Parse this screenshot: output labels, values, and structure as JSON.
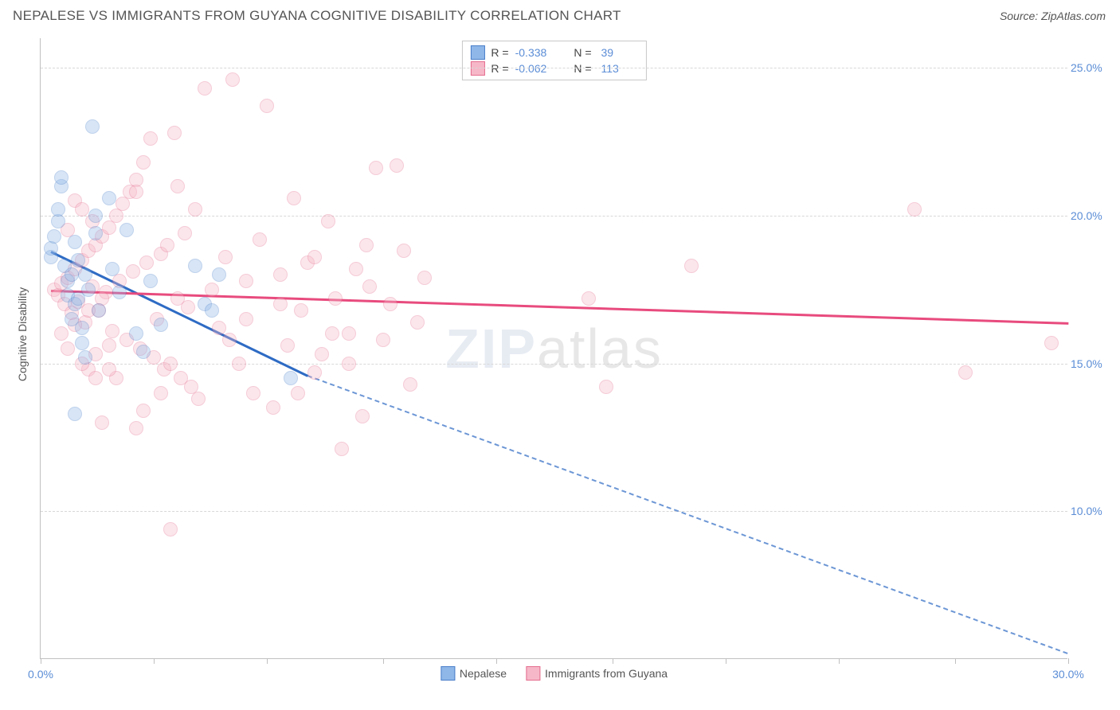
{
  "title": "NEPALESE VS IMMIGRANTS FROM GUYANA COGNITIVE DISABILITY CORRELATION CHART",
  "source": "Source: ZipAtlas.com",
  "watermark": {
    "bold": "ZIP",
    "thin": "atlas"
  },
  "chart": {
    "type": "scatter",
    "background_color": "#ffffff",
    "grid_color": "#d8d8d8",
    "axis_color": "#c0c0c0",
    "tick_label_color": "#5b8dd6",
    "label_color": "#555555",
    "y_axis_label": "Cognitive Disability",
    "label_fontsize": 14,
    "tick_fontsize": 14,
    "xlim": [
      0,
      30
    ],
    "ylim": [
      5,
      26
    ],
    "xtick_positions": [
      0,
      3.3,
      6.6,
      10,
      13.3,
      16.7,
      20,
      23.3,
      26.7,
      30
    ],
    "xtick_labels": [
      "0.0%",
      "",
      "",
      "",
      "",
      "",
      "",
      "",
      "",
      "30.0%"
    ],
    "ytick_positions": [
      10,
      15,
      20,
      25
    ],
    "ytick_labels": [
      "10.0%",
      "15.0%",
      "20.0%",
      "25.0%"
    ],
    "marker_radius": 9,
    "marker_opacity": 0.35,
    "series": [
      {
        "name": "Nepalese",
        "fill_color": "#8fb7e8",
        "stroke_color": "#4a7fc9",
        "line_color": "#2e6bc4",
        "R": "-0.338",
        "N": "39",
        "regression": {
          "x1": 0.3,
          "y1": 18.8,
          "x2": 7.8,
          "y2": 14.6,
          "extend_x2": 30,
          "extend_y2": 5.2
        },
        "points": [
          [
            0.3,
            18.6
          ],
          [
            0.3,
            18.9
          ],
          [
            0.4,
            19.3
          ],
          [
            0.5,
            19.8
          ],
          [
            0.5,
            20.2
          ],
          [
            0.6,
            21.0
          ],
          [
            0.6,
            21.3
          ],
          [
            0.7,
            18.3
          ],
          [
            0.8,
            17.8
          ],
          [
            0.8,
            17.3
          ],
          [
            0.9,
            18.0
          ],
          [
            0.9,
            16.5
          ],
          [
            1.0,
            17.0
          ],
          [
            1.0,
            19.1
          ],
          [
            1.1,
            18.5
          ],
          [
            1.1,
            17.2
          ],
          [
            1.2,
            16.2
          ],
          [
            1.2,
            15.7
          ],
          [
            1.3,
            15.2
          ],
          [
            1.3,
            18.0
          ],
          [
            1.4,
            17.5
          ],
          [
            1.0,
            13.3
          ],
          [
            1.5,
            23.0
          ],
          [
            1.6,
            20.0
          ],
          [
            1.6,
            19.4
          ],
          [
            1.7,
            16.8
          ],
          [
            2.0,
            20.6
          ],
          [
            2.1,
            18.2
          ],
          [
            2.3,
            17.4
          ],
          [
            2.5,
            19.5
          ],
          [
            2.8,
            16.0
          ],
          [
            3.0,
            15.4
          ],
          [
            3.2,
            17.8
          ],
          [
            3.5,
            16.3
          ],
          [
            4.5,
            18.3
          ],
          [
            4.8,
            17.0
          ],
          [
            5.0,
            16.8
          ],
          [
            5.2,
            18.0
          ],
          [
            7.3,
            14.5
          ]
        ]
      },
      {
        "name": "Immigrants from Guyana",
        "fill_color": "#f6b8c8",
        "stroke_color": "#e56d8f",
        "line_color": "#e84b7e",
        "R": "-0.062",
        "N": "113",
        "regression": {
          "x1": 0.3,
          "y1": 17.5,
          "x2": 30,
          "y2": 16.4
        },
        "points": [
          [
            0.4,
            17.5
          ],
          [
            0.5,
            17.3
          ],
          [
            0.6,
            17.7
          ],
          [
            0.7,
            17.0
          ],
          [
            0.8,
            17.9
          ],
          [
            0.9,
            16.7
          ],
          [
            1.0,
            18.2
          ],
          [
            1.1,
            17.1
          ],
          [
            1.2,
            18.5
          ],
          [
            1.3,
            16.4
          ],
          [
            1.4,
            18.8
          ],
          [
            1.5,
            17.6
          ],
          [
            1.6,
            19.0
          ],
          [
            1.7,
            16.8
          ],
          [
            1.8,
            19.3
          ],
          [
            1.9,
            17.4
          ],
          [
            2.0,
            19.6
          ],
          [
            2.1,
            16.1
          ],
          [
            2.2,
            20.0
          ],
          [
            2.3,
            17.8
          ],
          [
            2.4,
            20.4
          ],
          [
            2.5,
            15.8
          ],
          [
            2.6,
            20.8
          ],
          [
            2.7,
            18.1
          ],
          [
            2.8,
            21.2
          ],
          [
            2.9,
            15.5
          ],
          [
            3.0,
            21.8
          ],
          [
            3.1,
            18.4
          ],
          [
            3.2,
            22.6
          ],
          [
            3.3,
            15.2
          ],
          [
            3.4,
            16.5
          ],
          [
            3.5,
            18.7
          ],
          [
            3.6,
            14.8
          ],
          [
            3.7,
            19.0
          ],
          [
            3.8,
            15.0
          ],
          [
            3.9,
            22.8
          ],
          [
            4.0,
            17.2
          ],
          [
            4.1,
            14.5
          ],
          [
            4.2,
            19.4
          ],
          [
            4.3,
            16.9
          ],
          [
            4.4,
            14.2
          ],
          [
            4.5,
            20.2
          ],
          [
            4.6,
            13.8
          ],
          [
            4.8,
            24.3
          ],
          [
            5.0,
            17.5
          ],
          [
            5.2,
            16.2
          ],
          [
            5.4,
            18.6
          ],
          [
            5.6,
            24.6
          ],
          [
            5.8,
            15.0
          ],
          [
            6.0,
            17.8
          ],
          [
            6.2,
            14.0
          ],
          [
            6.4,
            19.2
          ],
          [
            6.6,
            23.7
          ],
          [
            6.8,
            13.5
          ],
          [
            7.0,
            18.0
          ],
          [
            7.2,
            15.6
          ],
          [
            7.4,
            20.6
          ],
          [
            7.6,
            16.8
          ],
          [
            7.8,
            18.4
          ],
          [
            8.0,
            14.7
          ],
          [
            8.2,
            15.3
          ],
          [
            8.4,
            19.8
          ],
          [
            8.6,
            17.2
          ],
          [
            8.8,
            12.1
          ],
          [
            9.0,
            16.0
          ],
          [
            9.2,
            18.2
          ],
          [
            9.4,
            13.2
          ],
          [
            9.6,
            17.6
          ],
          [
            9.8,
            21.6
          ],
          [
            10.0,
            15.8
          ],
          [
            10.2,
            17.0
          ],
          [
            10.4,
            21.7
          ],
          [
            10.6,
            18.8
          ],
          [
            10.8,
            14.3
          ],
          [
            11.0,
            16.4
          ],
          [
            11.2,
            17.9
          ],
          [
            2.8,
            12.8
          ],
          [
            3.0,
            13.4
          ],
          [
            1.8,
            13.0
          ],
          [
            2.2,
            14.5
          ],
          [
            1.4,
            14.8
          ],
          [
            1.6,
            15.3
          ],
          [
            2.0,
            15.6
          ],
          [
            3.5,
            14.0
          ],
          [
            4.0,
            21.0
          ],
          [
            1.0,
            20.5
          ],
          [
            1.5,
            19.8
          ],
          [
            2.8,
            20.8
          ],
          [
            0.8,
            19.5
          ],
          [
            1.2,
            20.2
          ],
          [
            5.5,
            15.8
          ],
          [
            6.0,
            16.5
          ],
          [
            7.0,
            17.0
          ],
          [
            7.5,
            14.0
          ],
          [
            8.0,
            18.6
          ],
          [
            8.5,
            16.0
          ],
          [
            9.0,
            15.0
          ],
          [
            9.5,
            19.0
          ],
          [
            3.8,
            9.4
          ],
          [
            16.0,
            17.2
          ],
          [
            16.5,
            14.2
          ],
          [
            19.0,
            18.3
          ],
          [
            25.5,
            20.2
          ],
          [
            27.0,
            14.7
          ],
          [
            29.5,
            15.7
          ],
          [
            0.6,
            16.0
          ],
          [
            0.8,
            15.5
          ],
          [
            1.0,
            16.3
          ],
          [
            1.2,
            15.0
          ],
          [
            1.4,
            16.8
          ],
          [
            1.6,
            14.5
          ],
          [
            1.8,
            17.2
          ],
          [
            2.0,
            14.8
          ]
        ]
      }
    ]
  }
}
